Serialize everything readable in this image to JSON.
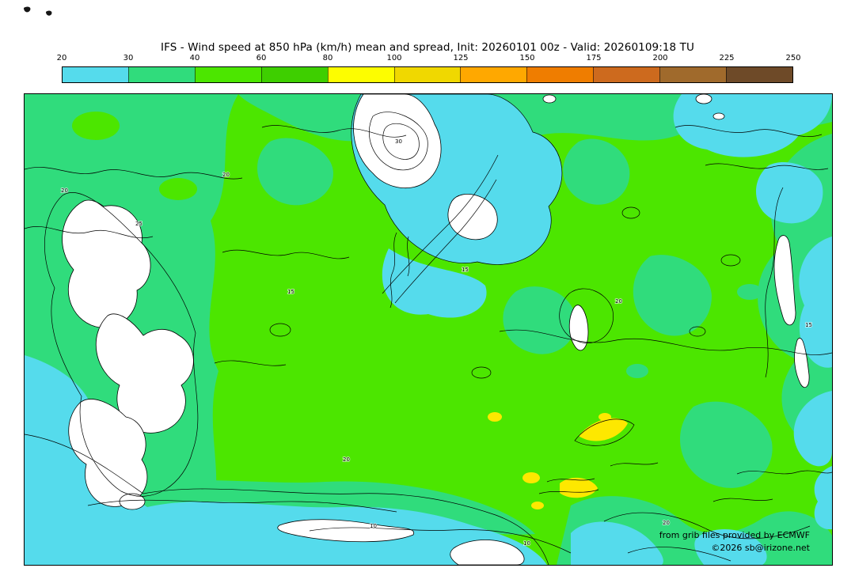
{
  "header": {
    "title": "IFS - Wind speed at 850 hPa (km/h) mean and spread, Init: 20260101 00z - Valid: 20260109:18 TU"
  },
  "colorbar": {
    "ticks": [
      "20",
      "30",
      "40",
      "60",
      "80",
      "100",
      "125",
      "150",
      "175",
      "200",
      "225",
      "250"
    ],
    "colors": [
      "#55dbec",
      "#30dc7c",
      "#4ce600",
      "#3ecf00",
      "#fdfd00",
      "#f0d800",
      "#ffa800",
      "#ef7d00",
      "#cd6a1e",
      "#a06a2c",
      "#6e4a28"
    ]
  },
  "map": {
    "colors": {
      "cyan": "#55dbec",
      "teal": "#30dc7c",
      "green": "#4ce600",
      "yellow": "#fde800",
      "low": "#ffffff",
      "contour": "#000000"
    },
    "contour_labels": [
      "20",
      "25",
      "15",
      "15",
      "20",
      "10",
      "20",
      "15",
      "20",
      "10",
      "30",
      "20"
    ],
    "attribution": {
      "line1": "from grib files provided by ECMWF",
      "line2": "©2026 sb@irizone.net"
    }
  }
}
